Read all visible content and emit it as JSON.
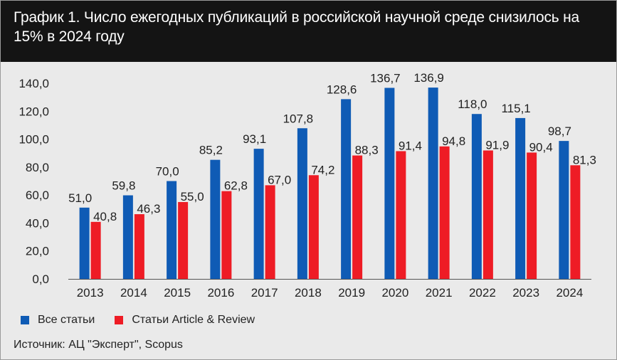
{
  "title": "График 1. Число ежегодных публикаций в российской научной среде снизилось на 15% в 2024 году",
  "source": "Источник: АЦ \"Эксперт\", Scopus",
  "colors": {
    "series1": "#0f5bb5",
    "series2": "#ee1c25",
    "background": "#eaeaea",
    "header": "#141414"
  },
  "chart_data": {
    "type": "bar",
    "categories": [
      "2013",
      "2014",
      "2015",
      "2016",
      "2017",
      "2018",
      "2019",
      "2020",
      "2021",
      "2022",
      "2023",
      "2024"
    ],
    "series": [
      {
        "name": "Все статьи",
        "values": [
          51.0,
          59.8,
          70.0,
          85.2,
          93.1,
          107.8,
          128.6,
          136.7,
          136.9,
          118.0,
          115.1,
          98.7
        ],
        "labels": [
          "51,0",
          "59,8",
          "70,0",
          "85,2",
          "93,1",
          "107,8",
          "128,6",
          "136,7",
          "136,9",
          "118,0",
          "115,1",
          "98,7"
        ]
      },
      {
        "name": "Статьи Article & Review",
        "values": [
          40.8,
          46.3,
          55.0,
          62.8,
          67.0,
          74.2,
          88.3,
          91.4,
          94.8,
          91.9,
          90.4,
          81.3
        ],
        "labels": [
          "40,8",
          "46,3",
          "55,0",
          "62,8",
          "67,0",
          "74,2",
          "88,3",
          "91,4",
          "94,8",
          "91,9",
          "90,4",
          "81,3"
        ]
      }
    ],
    "yticks": [
      "0,0",
      "20,0",
      "40,0",
      "60,0",
      "80,0",
      "100,0",
      "120,0",
      "140,0"
    ],
    "ylim": [
      0,
      140
    ],
    "grid": false,
    "legend": "bottom-left"
  }
}
